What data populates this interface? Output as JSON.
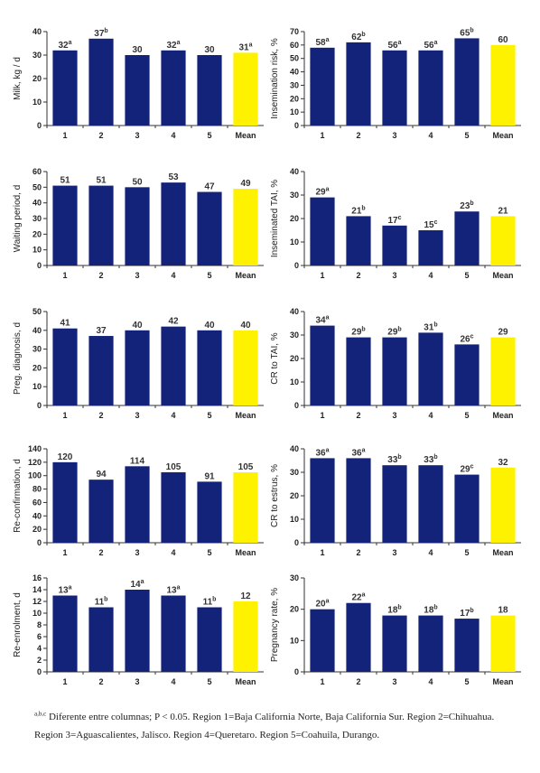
{
  "chart_data": [
    {
      "type": "bar",
      "ylabel": "Milk, kg / d",
      "ylim": [
        0,
        40
      ],
      "yticks": [
        0,
        10,
        20,
        30,
        40
      ],
      "categories": [
        "1",
        "2",
        "3",
        "4",
        "5",
        "Mean"
      ],
      "values": [
        32,
        37,
        30,
        32,
        30,
        31
      ],
      "labels": [
        "32",
        "37",
        "30",
        "32",
        "30",
        "31"
      ],
      "sup": [
        "a",
        "b",
        "",
        "a",
        "",
        "a"
      ]
    },
    {
      "type": "bar",
      "ylabel": "Insemination risk, %",
      "ylim": [
        0,
        70
      ],
      "yticks": [
        0,
        10,
        20,
        30,
        40,
        50,
        60,
        70
      ],
      "categories": [
        "1",
        "2",
        "3",
        "4",
        "5",
        "Mean"
      ],
      "values": [
        58,
        62,
        56,
        56,
        65,
        60
      ],
      "labels": [
        "58",
        "62",
        "56",
        "56",
        "65",
        "60"
      ],
      "sup": [
        "a",
        "b",
        "a",
        "a",
        "b",
        ""
      ]
    },
    {
      "type": "bar",
      "ylabel": "Waiting period, d",
      "ylim": [
        0,
        60
      ],
      "yticks": [
        0,
        10,
        20,
        30,
        40,
        50,
        60
      ],
      "categories": [
        "1",
        "2",
        "3",
        "4",
        "5",
        "Mean"
      ],
      "values": [
        51,
        51,
        50,
        53,
        47,
        49
      ],
      "labels": [
        "51",
        "51",
        "50",
        "53",
        "47",
        "49"
      ],
      "sup": [
        "",
        "",
        "",
        "",
        "",
        ""
      ]
    },
    {
      "type": "bar",
      "ylabel": "Inseminated TAI, %",
      "ylim": [
        0,
        40
      ],
      "yticks": [
        0,
        10,
        20,
        30,
        40
      ],
      "categories": [
        "1",
        "2",
        "3",
        "4",
        "5",
        "Mean"
      ],
      "values": [
        29,
        21,
        17,
        15,
        23,
        21
      ],
      "labels": [
        "29",
        "21",
        "17",
        "15",
        "23",
        "21"
      ],
      "sup": [
        "a",
        "b",
        "c",
        "c",
        "b",
        ""
      ]
    },
    {
      "type": "bar",
      "ylabel": "Preg. diagnosis, d",
      "ylim": [
        0,
        50
      ],
      "yticks": [
        0,
        10,
        20,
        30,
        40,
        50
      ],
      "categories": [
        "1",
        "2",
        "3",
        "4",
        "5",
        "Mean"
      ],
      "values": [
        41,
        37,
        40,
        42,
        40,
        40
      ],
      "labels": [
        "41",
        "37",
        "40",
        "42",
        "40",
        "40"
      ],
      "sup": [
        "",
        "",
        "",
        "",
        "",
        ""
      ]
    },
    {
      "type": "bar",
      "ylabel": "CR to TAI, %",
      "ylim": [
        0,
        40
      ],
      "yticks": [
        0,
        10,
        20,
        30,
        40
      ],
      "categories": [
        "1",
        "2",
        "3",
        "4",
        "5",
        "Mean"
      ],
      "values": [
        34,
        29,
        29,
        31,
        26,
        29
      ],
      "labels": [
        "34",
        "29",
        "29",
        "31",
        "26",
        "29"
      ],
      "sup": [
        "a",
        "b",
        "b",
        "b",
        "c",
        ""
      ]
    },
    {
      "type": "bar",
      "ylabel": "Re-confirmation, d",
      "ylim": [
        0,
        140
      ],
      "yticks": [
        0,
        20,
        40,
        60,
        80,
        100,
        120,
        140
      ],
      "categories": [
        "1",
        "2",
        "3",
        "4",
        "5",
        "Mean"
      ],
      "values": [
        120,
        94,
        114,
        105,
        91,
        105
      ],
      "labels": [
        "120",
        "94",
        "114",
        "105",
        "91",
        "105"
      ],
      "sup": [
        "",
        "",
        "",
        "",
        "",
        ""
      ]
    },
    {
      "type": "bar",
      "ylabel": "CR to estrus, %",
      "ylim": [
        0,
        40
      ],
      "yticks": [
        0,
        10,
        20,
        30,
        40
      ],
      "categories": [
        "1",
        "2",
        "3",
        "4",
        "5",
        "Mean"
      ],
      "values": [
        36,
        36,
        33,
        33,
        29,
        32
      ],
      "labels": [
        "36",
        "36",
        "33",
        "33",
        "29",
        "32"
      ],
      "sup": [
        "a",
        "a",
        "b",
        "b",
        "c",
        ""
      ]
    },
    {
      "type": "bar",
      "ylabel": "Re-enrolment, d",
      "ylim": [
        0,
        16
      ],
      "yticks": [
        0,
        2,
        4,
        6,
        8,
        10,
        12,
        14,
        16
      ],
      "categories": [
        "1",
        "2",
        "3",
        "4",
        "5",
        "Mean"
      ],
      "values": [
        13,
        11,
        14,
        13,
        11,
        12
      ],
      "labels": [
        "13",
        "11",
        "14",
        "13",
        "11",
        "12"
      ],
      "sup": [
        "a",
        "b",
        "a",
        "a",
        "b",
        ""
      ]
    },
    {
      "type": "bar",
      "ylabel": "Pregnancy rate, %",
      "ylim": [
        0,
        30
      ],
      "yticks": [
        0,
        10,
        20,
        30
      ],
      "categories": [
        "1",
        "2",
        "3",
        "4",
        "5",
        "Mean"
      ],
      "values": [
        20,
        22,
        18,
        18,
        17,
        18
      ],
      "labels": [
        "20",
        "22",
        "18",
        "18",
        "17",
        "18"
      ],
      "sup": [
        "a",
        "a",
        "b",
        "b",
        "b",
        ""
      ]
    }
  ],
  "colors": {
    "bar": "#13237a",
    "mean": "#fff200",
    "axis": "#333333"
  },
  "footnote": {
    "sup": "a,b,c",
    "text": " Diferente entre columnas; P < 0.05. Region 1=Baja California Norte, Baja California Sur. Region 2=Chihuahua. Region 3=Aguascalientes, Jalisco. Region 4=Queretaro. Region 5=Coahuila, Durango."
  }
}
